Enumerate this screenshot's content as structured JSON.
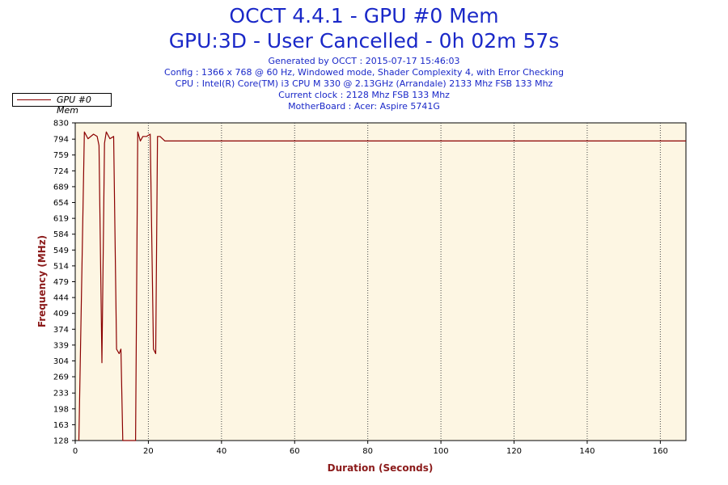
{
  "title": "OCCT 4.4.1 - GPU #0 Mem",
  "subtitle": "GPU:3D - User Cancelled - 0h 02m 57s",
  "info": [
    "Generated by OCCT : 2015-07-17 15:46:03",
    "Config : 1366 x 768 @ 60 Hz, Windowed mode, Shader Complexity 4, with Error Checking",
    "CPU : Intel(R) Core(TM) i3 CPU M 330 @ 2.13GHz (Arrandale) 2133 Mhz FSB 133 Mhz",
    "Current clock : 2128 Mhz FSB 133 Mhz",
    "MotherBoard : Acer: Aspire 5741G"
  ],
  "colors": {
    "title": "#1a28c8",
    "axis_label": "#8b1a1a",
    "line": "#8b0000",
    "plot_bg": "#fdf6e3"
  },
  "chart_data": {
    "type": "line",
    "xlabel": "Duration (Seconds)",
    "ylabel": "Frequency (MHz)",
    "xlim": [
      0,
      167
    ],
    "ylim": [
      128,
      830
    ],
    "x_ticks": [
      0,
      20,
      40,
      60,
      80,
      100,
      120,
      140,
      160
    ],
    "y_ticks": [
      128,
      163,
      198,
      233,
      269,
      304,
      339,
      374,
      409,
      444,
      479,
      514,
      549,
      584,
      619,
      654,
      689,
      724,
      759,
      794,
      830
    ],
    "grid": "vertical dotted",
    "legend_position": "top-left",
    "series": [
      {
        "name": "GPU #0 Mem",
        "x": [
          1,
          2.5,
          3.5,
          5,
          6,
          6.5,
          7.3,
          8,
          8.5,
          9.5,
          10.5,
          11.3,
          12,
          12.5,
          13,
          14.5,
          15.5,
          16.5,
          17.1,
          17.8,
          18.5,
          19.5,
          20.5,
          21.4,
          22,
          22.5,
          23.2,
          24.5,
          25,
          167
        ],
        "y": [
          128,
          810,
          795,
          805,
          800,
          780,
          300,
          785,
          810,
          795,
          800,
          330,
          320,
          330,
          128,
          128,
          128,
          128,
          810,
          790,
          800,
          800,
          805,
          330,
          320,
          800,
          800,
          790,
          790,
          790
        ]
      }
    ]
  }
}
